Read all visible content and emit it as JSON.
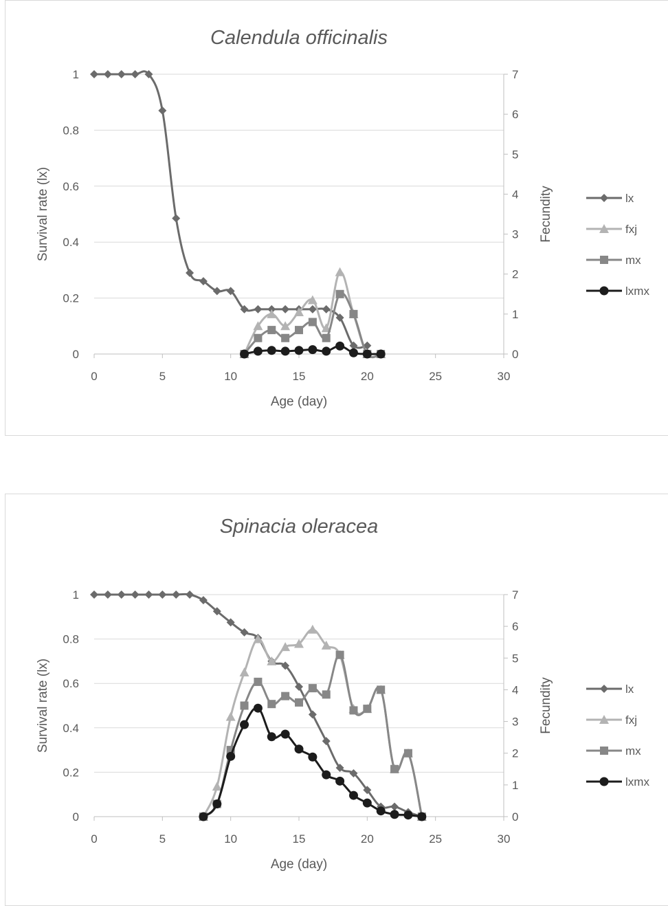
{
  "chart_data": [
    {
      "type": "line",
      "title": "Calendula officinalis",
      "xlabel": "Age (day)",
      "ylabel": "Survival rate (lx)",
      "y2label": "Fecundity",
      "xlim": [
        0,
        30
      ],
      "ylim": [
        0,
        1
      ],
      "y2lim": [
        0,
        7
      ],
      "xticks": [
        "0",
        "5",
        "10",
        "15",
        "20",
        "25",
        "30"
      ],
      "yticks": [
        "0",
        "0.2",
        "0.4",
        "0.6",
        "0.8",
        "1"
      ],
      "y2ticks": [
        "0",
        "1",
        "2",
        "3",
        "4",
        "5",
        "6",
        "7"
      ],
      "grid": true,
      "legend_position": "right",
      "series": [
        {
          "name": "lx",
          "axis": "left",
          "marker": "diamond",
          "color": "#6b6b6b",
          "x": [
            0,
            1,
            2,
            3,
            4,
            5,
            6,
            7,
            8,
            9,
            10,
            11,
            12,
            13,
            14,
            15,
            16,
            17,
            18,
            19,
            20
          ],
          "y": [
            1,
            1,
            1,
            1,
            1,
            0.87,
            0.485,
            0.29,
            0.26,
            0.225,
            0.225,
            0.16,
            0.16,
            0.16,
            0.16,
            0.16,
            0.16,
            0.16,
            0.13,
            0.03,
            0.03
          ]
        },
        {
          "name": "fxj",
          "axis": "right",
          "marker": "triangle",
          "color": "#b3b3b3",
          "x": [
            11,
            12,
            13,
            14,
            15,
            16,
            17,
            18,
            19,
            20,
            21
          ],
          "y": [
            0,
            0.7,
            1.0,
            0.7,
            1.05,
            1.35,
            0.65,
            2.05,
            1.0,
            0,
            0
          ]
        },
        {
          "name": "mx",
          "axis": "right",
          "marker": "square",
          "color": "#878787",
          "x": [
            11,
            12,
            13,
            14,
            15,
            16,
            17,
            18,
            19,
            20,
            21
          ],
          "y": [
            0,
            0.4,
            0.6,
            0.4,
            0.6,
            0.8,
            0.4,
            1.5,
            1.0,
            0,
            0
          ]
        },
        {
          "name": "lxmx",
          "axis": "right",
          "marker": "circle",
          "color": "#1c1c1c",
          "x": [
            11,
            12,
            13,
            14,
            15,
            16,
            17,
            18,
            19,
            20,
            21
          ],
          "y": [
            0,
            0.07,
            0.09,
            0.07,
            0.09,
            0.11,
            0.07,
            0.2,
            0.03,
            0,
            0
          ]
        }
      ]
    },
    {
      "type": "line",
      "title": "Spinacia oleracea",
      "xlabel": "Age (day)",
      "ylabel": "Survival rate (lx)",
      "y2label": "Fecundity",
      "xlim": [
        0,
        30
      ],
      "ylim": [
        0,
        1
      ],
      "y2lim": [
        0,
        7
      ],
      "xticks": [
        "0",
        "5",
        "10",
        "15",
        "20",
        "25",
        "30"
      ],
      "yticks": [
        "0",
        "0.2",
        "0.4",
        "0.6",
        "0.8",
        "1"
      ],
      "y2ticks": [
        "0",
        "1",
        "2",
        "3",
        "4",
        "5",
        "6",
        "7"
      ],
      "grid": true,
      "legend_position": "right",
      "series": [
        {
          "name": "lx",
          "axis": "left",
          "marker": "diamond",
          "color": "#6b6b6b",
          "x": [
            0,
            1,
            2,
            3,
            4,
            5,
            6,
            7,
            8,
            9,
            10,
            11,
            12,
            13,
            14,
            15,
            16,
            17,
            18,
            19,
            20,
            21,
            22,
            23,
            24
          ],
          "y": [
            1,
            1,
            1,
            1,
            1,
            1,
            1,
            1,
            0.975,
            0.925,
            0.875,
            0.83,
            0.805,
            0.7,
            0.68,
            0.585,
            0.46,
            0.34,
            0.22,
            0.195,
            0.12,
            0.045,
            0.045,
            0.02,
            0
          ]
        },
        {
          "name": "fxj",
          "axis": "right",
          "marker": "triangle",
          "color": "#b3b3b3",
          "x": [
            8,
            9,
            10,
            11,
            12,
            13,
            14,
            15,
            16,
            17,
            18,
            19,
            20,
            21,
            22,
            23,
            24
          ],
          "y": [
            0,
            0.95,
            3.15,
            4.55,
            5.6,
            4.9,
            5.35,
            5.45,
            5.9,
            5.4,
            5.1,
            3.4,
            3.4,
            4.0,
            1.5,
            2.0,
            0
          ]
        },
        {
          "name": "mx",
          "axis": "right",
          "marker": "square",
          "color": "#878787",
          "x": [
            8,
            9,
            10,
            11,
            12,
            13,
            14,
            15,
            16,
            17,
            18,
            19,
            20,
            21,
            22,
            23,
            24
          ],
          "y": [
            0,
            0.4,
            2.1,
            3.5,
            4.25,
            3.55,
            3.8,
            3.6,
            4.05,
            3.85,
            5.1,
            3.35,
            3.4,
            4.0,
            1.5,
            2.0,
            0
          ]
        },
        {
          "name": "lxmx",
          "axis": "right",
          "marker": "circle",
          "color": "#1c1c1c",
          "x": [
            8,
            9,
            10,
            11,
            12,
            13,
            14,
            15,
            16,
            17,
            18,
            19,
            20,
            21,
            22,
            23,
            24
          ],
          "y": [
            0,
            0.4,
            1.9,
            2.9,
            3.42,
            2.52,
            2.6,
            2.13,
            1.88,
            1.32,
            1.12,
            0.67,
            0.43,
            0.18,
            0.07,
            0.05,
            0
          ]
        }
      ]
    }
  ]
}
